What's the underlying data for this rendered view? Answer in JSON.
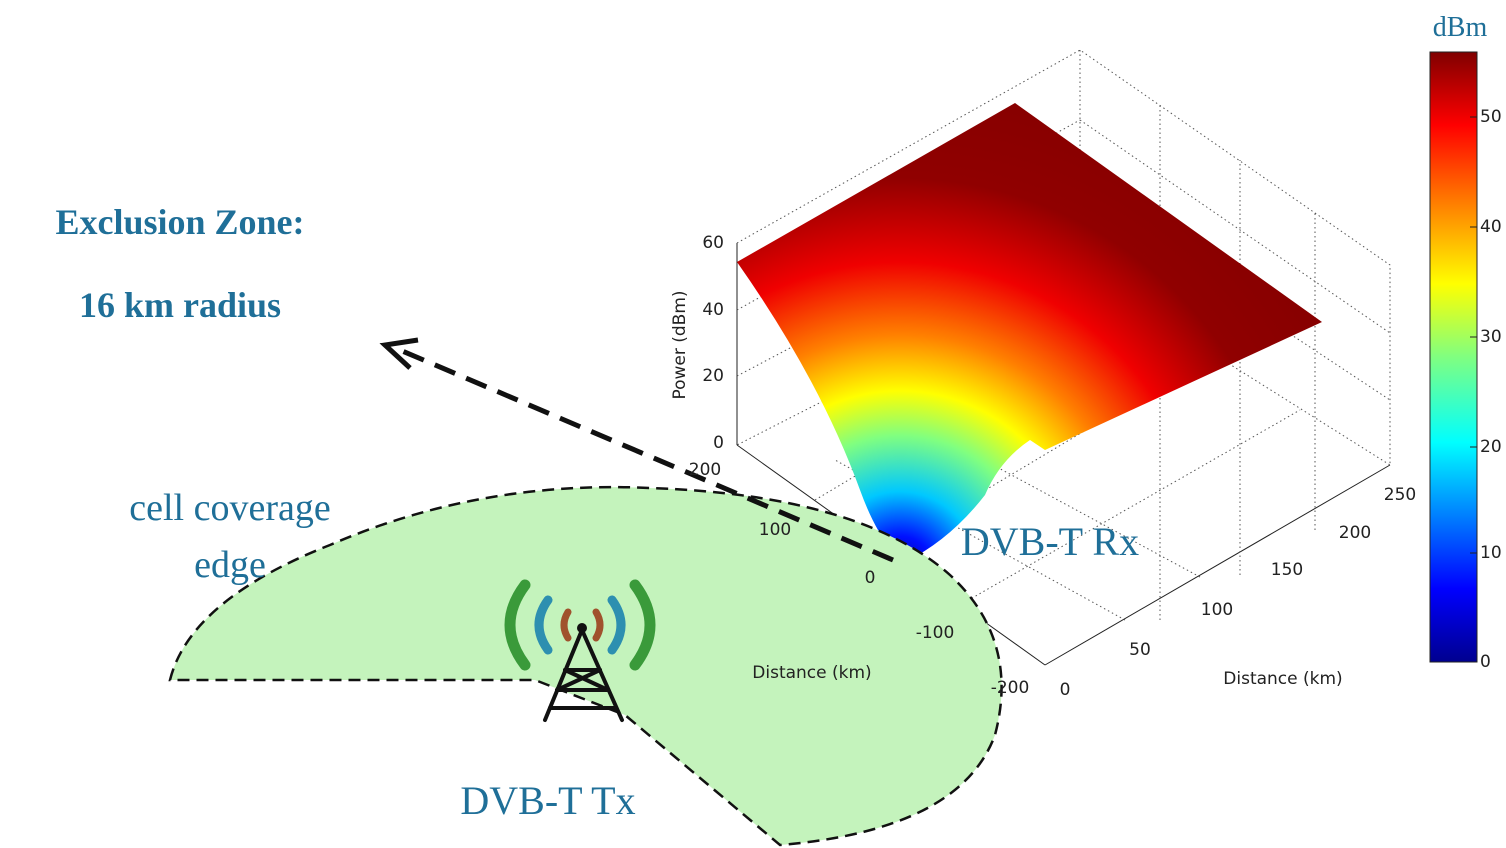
{
  "labels": {
    "exclusion_title": "Exclusion Zone:",
    "exclusion_radius": "16 km radius",
    "cell_edge": [
      "cell coverage",
      "edge"
    ],
    "tx": "DVB-T Tx",
    "rx": "DVB-T Rx"
  },
  "plot": {
    "z_label": "Power (dBm)",
    "x_label": "Distance (km)",
    "y_label": "Distance (km)",
    "z_ticks": [
      "0",
      "20",
      "40",
      "60"
    ],
    "x_ticks": [
      "200",
      "100",
      "0",
      "-100",
      "-200"
    ],
    "y_ticks": [
      "0",
      "50",
      "100",
      "150",
      "200",
      "250"
    ]
  },
  "colorbar": {
    "unit": "dBm",
    "ticks": [
      "0",
      "10",
      "20",
      "30",
      "40",
      "50"
    ]
  }
}
